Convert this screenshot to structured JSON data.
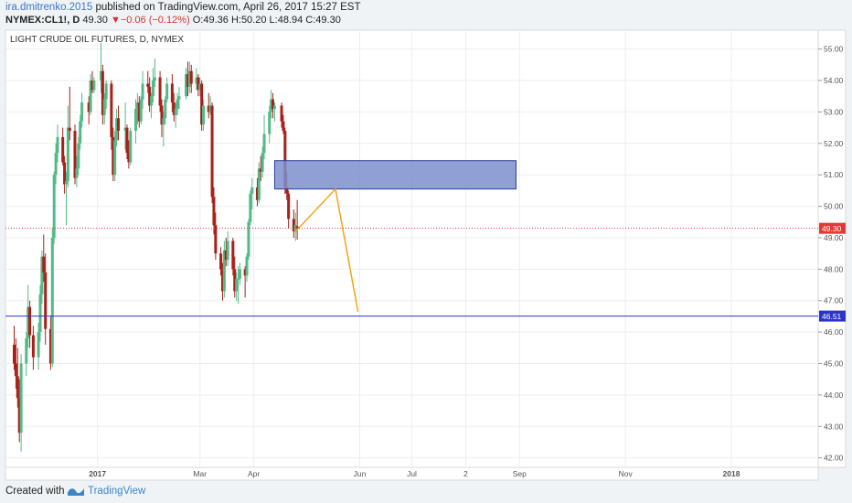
{
  "header": {
    "author": "ira.dmitrenko.2015",
    "published_text": "published on TradingView.com, April 26, 2017 15:27 EST",
    "symbol": "NYMEX:CL1!, D",
    "last": "49.30",
    "change_arrow": "▼",
    "change": "−0.06 (−0.12%)",
    "open": "O:49.36",
    "high": "H:50.20",
    "low": "L:48.94",
    "close": "C:49.30"
  },
  "footer": {
    "created_with": "Created with",
    "brand": "TradingView",
    "logo_icon": "tradingview-logo-icon"
  },
  "chart_data": {
    "type": "candlestick",
    "title": "LIGHT CRUDE OIL FUTURES, D, NYMEX",
    "ylim": [
      41.7,
      55.6
    ],
    "y_ticks": [
      42,
      43,
      44,
      45,
      46,
      47,
      48,
      49,
      50,
      51,
      52,
      53,
      54,
      55
    ],
    "x_tick_labels": [
      "2017",
      "Mar",
      "Apr",
      "Jun",
      "Jul",
      "2",
      "Sep",
      "Nov",
      "2018"
    ],
    "x_label_dates": [
      "2017-01-01",
      "2017-03-01",
      "2017-04-01",
      "2017-06-01",
      "2017-07-01",
      "2017-08-01",
      "2017-09-01",
      "2017-11-01",
      "2018-01-01"
    ],
    "xlim": [
      "2016-11-09",
      "2018-02-20"
    ],
    "grid": true,
    "colors": {
      "up": "#53b987",
      "down": "#a8201a",
      "zone_fill": "#7d8fcc",
      "zone_stroke": "#2b3e9c",
      "projection": "#f4a316",
      "support": "#2c34c8",
      "last_price": "#e53935"
    },
    "last_price_label": "49.30",
    "horizontal_line": {
      "value": 46.51,
      "label": "46.51"
    },
    "zone": {
      "x_start": "2017-04-13",
      "x_end": "2017-08-30",
      "y_low": 50.55,
      "y_high": 51.45
    },
    "projection": [
      {
        "x": "2017-04-25",
        "y": 49.2
      },
      {
        "x": "2017-05-18",
        "y": 50.55
      },
      {
        "x": "2017-05-31",
        "y": 46.65
      }
    ],
    "ohlc": [
      [
        "2016-11-14",
        45.6,
        46.2,
        44.8,
        45.0
      ],
      [
        "2016-11-15",
        45.0,
        45.8,
        44.2,
        44.6
      ],
      [
        "2016-11-16",
        44.6,
        45.5,
        43.6,
        43.9
      ],
      [
        "2016-11-17",
        43.9,
        44.5,
        42.5,
        42.8
      ],
      [
        "2016-11-18",
        42.8,
        45.3,
        42.2,
        45.0
      ],
      [
        "2016-11-21",
        45.0,
        46.0,
        44.6,
        45.8
      ],
      [
        "2016-11-22",
        45.8,
        47.5,
        45.5,
        46.8
      ],
      [
        "2016-11-23",
        46.8,
        47.0,
        45.5,
        45.9
      ],
      [
        "2016-11-25",
        45.9,
        46.2,
        44.8,
        45.2
      ],
      [
        "2016-11-28",
        45.2,
        46.3,
        44.8,
        46.0
      ],
      [
        "2016-11-29",
        46.0,
        47.5,
        45.7,
        47.2
      ],
      [
        "2016-11-30",
        47.2,
        48.6,
        46.9,
        48.4
      ],
      [
        "2016-12-01",
        48.4,
        49.1,
        47.6,
        47.9
      ],
      [
        "2016-12-02",
        47.9,
        48.5,
        45.6,
        46.1
      ],
      [
        "2016-12-05",
        46.1,
        46.5,
        44.8,
        45.0
      ],
      [
        "2016-12-06",
        45.0,
        49.3,
        44.9,
        49.0
      ],
      [
        "2016-12-07",
        49.0,
        51.1,
        48.8,
        51.0
      ],
      [
        "2016-12-08",
        51.0,
        52.0,
        50.7,
        51.7
      ],
      [
        "2016-12-09",
        51.7,
        52.6,
        51.4,
        52.2
      ],
      [
        "2016-12-12",
        52.2,
        52.5,
        51.3,
        51.4
      ],
      [
        "2016-12-13",
        51.4,
        51.6,
        50.4,
        50.7
      ],
      [
        "2016-12-14",
        50.7,
        51.1,
        49.4,
        50.8
      ],
      [
        "2016-12-15",
        50.8,
        53.2,
        50.6,
        52.5
      ],
      [
        "2016-12-16",
        52.5,
        53.8,
        52.1,
        52.4
      ],
      [
        "2016-12-19",
        52.4,
        52.6,
        50.7,
        50.9
      ],
      [
        "2016-12-20",
        50.9,
        51.6,
        50.6,
        51.2
      ],
      [
        "2016-12-21",
        51.2,
        52.2,
        51.0,
        52.0
      ],
      [
        "2016-12-22",
        52.0,
        52.9,
        51.8,
        52.7
      ],
      [
        "2016-12-23",
        52.7,
        53.6,
        52.5,
        53.3
      ],
      [
        "2016-12-27",
        53.3,
        53.5,
        52.6,
        53.0
      ],
      [
        "2016-12-28",
        53.0,
        54.2,
        52.9,
        54.0
      ],
      [
        "2016-12-29",
        54.0,
        54.3,
        53.6,
        53.7
      ],
      [
        "2016-12-30",
        53.7,
        54.1,
        53.6,
        54.0
      ],
      [
        "2017-01-03",
        54.0,
        55.2,
        53.6,
        54.3
      ],
      [
        "2017-01-04",
        54.3,
        54.5,
        52.6,
        52.9
      ],
      [
        "2017-01-05",
        52.9,
        53.6,
        52.6,
        53.4
      ],
      [
        "2017-01-06",
        53.4,
        54.0,
        53.1,
        53.9
      ],
      [
        "2017-01-09",
        53.9,
        54.0,
        51.8,
        52.2
      ],
      [
        "2017-01-10",
        52.2,
        52.5,
        50.8,
        51.0
      ],
      [
        "2017-01-11",
        51.0,
        52.4,
        50.8,
        52.1
      ],
      [
        "2017-01-12",
        52.1,
        53.1,
        51.9,
        52.8
      ],
      [
        "2017-01-13",
        52.8,
        53.2,
        52.1,
        52.4
      ],
      [
        "2017-01-17",
        52.4,
        53.3,
        51.8,
        52.5
      ],
      [
        "2017-01-18",
        52.5,
        52.6,
        51.5,
        51.7
      ],
      [
        "2017-01-19",
        51.7,
        52.1,
        51.2,
        51.4
      ],
      [
        "2017-01-20",
        51.4,
        52.5,
        51.3,
        52.4
      ],
      [
        "2017-01-23",
        52.4,
        53.4,
        52.0,
        53.1
      ],
      [
        "2017-01-24",
        53.1,
        53.6,
        52.6,
        53.3
      ],
      [
        "2017-01-25",
        53.3,
        53.5,
        52.5,
        52.7
      ],
      [
        "2017-01-26",
        52.7,
        53.5,
        52.6,
        53.4
      ],
      [
        "2017-01-27",
        53.4,
        54.3,
        53.1,
        53.9
      ],
      [
        "2017-01-30",
        53.9,
        54.3,
        53.6,
        53.8
      ],
      [
        "2017-01-31",
        53.8,
        54.1,
        53.0,
        53.2
      ],
      [
        "2017-02-01",
        53.2,
        53.6,
        52.8,
        53.5
      ],
      [
        "2017-02-02",
        53.5,
        54.4,
        53.3,
        54.0
      ],
      [
        "2017-02-03",
        54.0,
        54.7,
        53.8,
        54.1
      ],
      [
        "2017-02-06",
        54.1,
        54.3,
        53.0,
        53.2
      ],
      [
        "2017-02-07",
        53.2,
        53.4,
        52.2,
        52.6
      ],
      [
        "2017-02-08",
        52.6,
        53.0,
        51.9,
        52.8
      ],
      [
        "2017-02-09",
        52.8,
        53.5,
        52.6,
        53.4
      ],
      [
        "2017-02-10",
        53.4,
        54.1,
        53.3,
        53.9
      ],
      [
        "2017-02-13",
        53.9,
        54.2,
        53.0,
        53.3
      ],
      [
        "2017-02-14",
        53.3,
        53.6,
        52.7,
        52.9
      ],
      [
        "2017-02-15",
        52.9,
        53.3,
        52.5,
        53.1
      ],
      [
        "2017-02-16",
        53.1,
        53.6,
        52.9,
        53.4
      ],
      [
        "2017-02-17",
        53.4,
        53.8,
        53.1,
        53.5
      ],
      [
        "2017-02-21",
        53.5,
        54.4,
        53.4,
        54.2
      ],
      [
        "2017-02-22",
        54.2,
        54.6,
        53.5,
        53.8
      ],
      [
        "2017-02-23",
        53.8,
        54.6,
        53.6,
        54.3
      ],
      [
        "2017-02-24",
        54.3,
        54.5,
        53.6,
        53.9
      ],
      [
        "2017-02-27",
        53.9,
        54.4,
        53.7,
        54.1
      ],
      [
        "2017-02-28",
        54.1,
        54.2,
        53.5,
        53.7
      ],
      [
        "2017-03-01",
        53.7,
        54.1,
        53.5,
        53.9
      ],
      [
        "2017-03-02",
        53.9,
        54.0,
        52.4,
        52.6
      ],
      [
        "2017-03-03",
        52.6,
        53.4,
        52.4,
        53.2
      ],
      [
        "2017-03-06",
        53.2,
        53.6,
        52.8,
        53.0
      ],
      [
        "2017-03-07",
        53.0,
        53.5,
        52.9,
        53.2
      ],
      [
        "2017-03-08",
        53.2,
        53.3,
        50.1,
        50.3
      ],
      [
        "2017-03-09",
        50.3,
        50.6,
        49.1,
        49.4
      ],
      [
        "2017-03-10",
        49.4,
        49.8,
        48.3,
        48.5
      ],
      [
        "2017-03-13",
        48.5,
        48.7,
        47.8,
        48.0
      ],
      [
        "2017-03-14",
        48.0,
        48.2,
        47.0,
        47.3
      ],
      [
        "2017-03-15",
        47.3,
        48.9,
        47.1,
        48.6
      ],
      [
        "2017-03-16",
        48.6,
        49.0,
        48.1,
        48.3
      ],
      [
        "2017-03-17",
        48.3,
        49.2,
        48.1,
        48.9
      ],
      [
        "2017-03-20",
        48.9,
        49.0,
        47.8,
        48.0
      ],
      [
        "2017-03-21",
        48.0,
        48.4,
        47.1,
        47.3
      ],
      [
        "2017-03-22",
        47.3,
        47.9,
        47.0,
        47.7
      ],
      [
        "2017-03-23",
        47.7,
        48.1,
        46.9,
        47.7
      ],
      [
        "2017-03-24",
        47.7,
        48.2,
        47.5,
        48.0
      ],
      [
        "2017-03-27",
        48.0,
        48.1,
        47.1,
        47.8
      ],
      [
        "2017-03-28",
        47.8,
        48.5,
        47.6,
        48.4
      ],
      [
        "2017-03-29",
        48.4,
        49.6,
        48.3,
        49.5
      ],
      [
        "2017-03-30",
        49.5,
        50.5,
        49.4,
        50.4
      ],
      [
        "2017-03-31",
        50.4,
        50.9,
        49.9,
        50.6
      ],
      [
        "2017-04-03",
        50.6,
        50.9,
        50.0,
        50.2
      ],
      [
        "2017-04-04",
        50.2,
        51.4,
        50.1,
        51.2
      ],
      [
        "2017-04-05",
        51.2,
        51.6,
        50.8,
        51.1
      ],
      [
        "2017-04-06",
        51.1,
        51.9,
        50.9,
        51.7
      ],
      [
        "2017-04-07",
        51.7,
        52.9,
        51.5,
        52.3
      ],
      [
        "2017-04-10",
        52.3,
        53.2,
        52.0,
        53.0
      ],
      [
        "2017-04-11",
        53.0,
        53.7,
        52.8,
        53.4
      ],
      [
        "2017-04-12",
        53.4,
        53.6,
        52.8,
        53.1
      ],
      [
        "2017-04-13",
        53.1,
        53.3,
        52.7,
        53.2
      ],
      [
        "2017-04-17",
        53.2,
        53.3,
        52.5,
        52.7
      ],
      [
        "2017-04-18",
        52.7,
        52.9,
        52.3,
        52.4
      ],
      [
        "2017-04-19",
        52.4,
        52.5,
        50.4,
        50.6
      ],
      [
        "2017-04-20",
        50.6,
        51.1,
        50.2,
        50.4
      ],
      [
        "2017-04-21",
        50.4,
        50.5,
        49.3,
        49.6
      ],
      [
        "2017-04-24",
        49.6,
        49.9,
        49.0,
        49.2
      ],
      [
        "2017-04-25",
        49.2,
        49.8,
        48.9,
        49.4
      ],
      [
        "2017-04-26",
        49.36,
        50.2,
        48.94,
        49.3
      ]
    ]
  }
}
